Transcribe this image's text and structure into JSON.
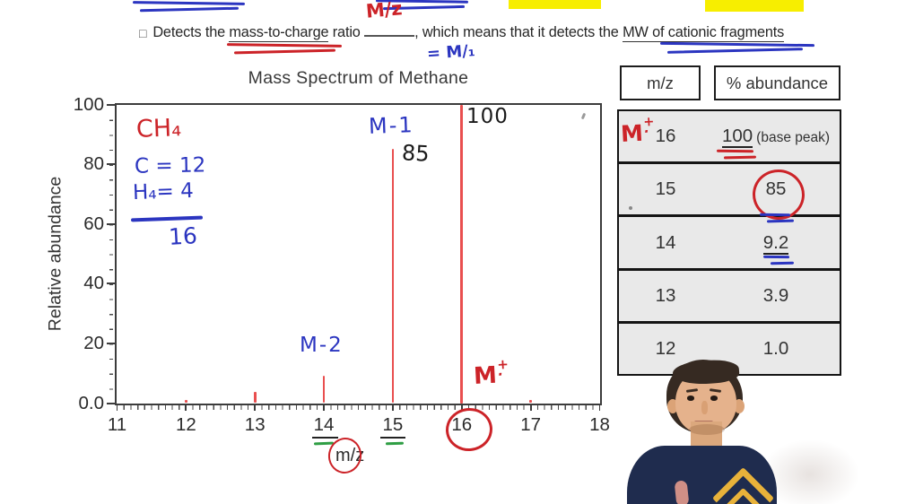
{
  "top": {
    "checkbox_icon": "□",
    "sentence": {
      "p1": "Detects the ",
      "p2": "mass-to-charge",
      "p3": " ratio ",
      "p4": ", which means that it detects the ",
      "p5": "MW of cationic fragments"
    },
    "handwritten_ratio": "M/z",
    "handwritten_eq": "= M/₁"
  },
  "chart_data": {
    "type": "bar",
    "title": "Mass Spectrum of Methane",
    "xlabel": "m/z",
    "ylabel": "Relative abundance",
    "xlim": [
      11,
      18
    ],
    "ylim": [
      0,
      100
    ],
    "grid": false,
    "xticks": [
      "11",
      "12",
      "13",
      "14",
      "15",
      "16",
      "17",
      "18"
    ],
    "yticks": [
      "100",
      "80",
      "60",
      "40",
      "20",
      "0.0"
    ],
    "ytick_values": [
      100,
      80,
      60,
      40,
      20,
      0
    ],
    "x": [
      12,
      13,
      14,
      15,
      16,
      17
    ],
    "values": [
      1.0,
      3.9,
      9.2,
      85,
      100,
      1.0
    ],
    "bar_color": "#e94f4f"
  },
  "chart_annotations": {
    "formula": "CH₄",
    "carbon_mass": "C = 12",
    "hydrogen_mass": "H₄= 4",
    "total_mass": "16",
    "m_minus_1": "M-1",
    "m_minus_2": "M-2",
    "peak_16_value": "100",
    "peak_15_value": "85",
    "molecular_ion": {
      "m": "M",
      "plus": "+",
      "dot": "·"
    }
  },
  "table": {
    "headers": [
      "m/z",
      "% abundance"
    ],
    "rows": [
      {
        "mz": "16",
        "abundance": "100",
        "note": "(base peak)",
        "underline": true
      },
      {
        "mz": "15",
        "abundance": "85",
        "note": "",
        "underline": false
      },
      {
        "mz": "14",
        "abundance": "9.2",
        "note": "",
        "underline": true
      },
      {
        "mz": "13",
        "abundance": "3.9",
        "note": "",
        "underline": false
      },
      {
        "mz": "12",
        "abundance": "1.0",
        "note": "",
        "underline": false
      }
    ]
  },
  "colors": {
    "red_ink": "#cc2328",
    "blue_ink": "#2b35c0",
    "green_ink": "#2f9e44",
    "highlight_yellow": "#f7ee00",
    "peak_red": "#e94f4f"
  }
}
